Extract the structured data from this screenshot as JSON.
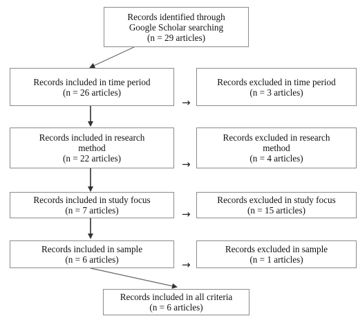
{
  "boxes": {
    "identified": [
      "Records identified through",
      "Google Scholar searching",
      "(n = 29 articles)"
    ],
    "time_included": [
      "Records included in time period",
      "(n = 26 articles)"
    ],
    "time_excluded": [
      "Records excluded in time period",
      "(n = 3 articles)"
    ],
    "method_included": [
      "Records included in research",
      "method",
      "(n = 22 articles)"
    ],
    "method_excluded": [
      "Records excluded in research",
      "method",
      "(n = 4 articles)"
    ],
    "focus_included": [
      "Records included in study focus",
      "(n = 7 articles)"
    ],
    "focus_excluded": [
      "Records excluded in study focus",
      "(n = 15 articles)"
    ],
    "sample_included": [
      "Records included in sample",
      "(n = 6 articles)"
    ],
    "sample_excluded": [
      "Records excluded in sample",
      "(n = 1 articles)"
    ],
    "all_criteria": [
      "Records included in all criteria",
      "(n = 6 articles)"
    ]
  },
  "arrow_glyph": "→"
}
